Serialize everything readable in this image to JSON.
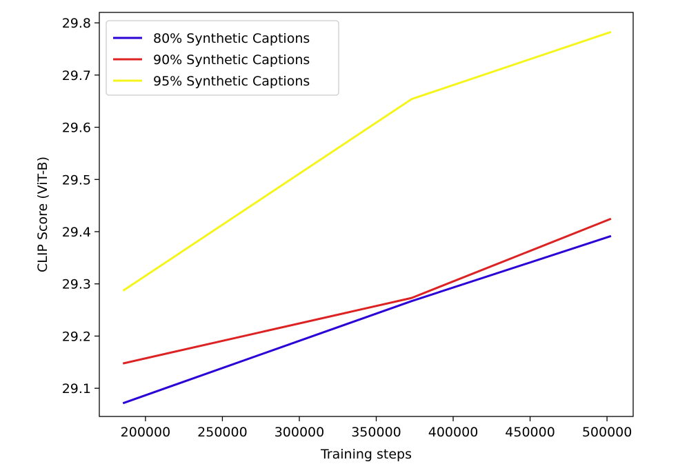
{
  "chart_data": {
    "type": "line",
    "title": "",
    "xlabel": "Training steps",
    "ylabel": "CLIP Score (ViT-B)",
    "xlim": [
      170000,
      517000
    ],
    "ylim": [
      29.046,
      29.82
    ],
    "xticks": [
      200000,
      250000,
      300000,
      350000,
      400000,
      450000,
      500000
    ],
    "xtick_labels": [
      "200000",
      "250000",
      "300000",
      "350000",
      "400000",
      "450000",
      "500000"
    ],
    "yticks": [
      29.1,
      29.2,
      29.3,
      29.4,
      29.5,
      29.6,
      29.7,
      29.8
    ],
    "ytick_labels": [
      "29.1",
      "29.2",
      "29.3",
      "29.4",
      "29.5",
      "29.6",
      "29.7",
      "29.8"
    ],
    "grid": false,
    "legend_position": "top-left",
    "x": [
      186000,
      373000,
      502000
    ],
    "series": [
      {
        "name": "80% Synthetic Captions",
        "color": "#2a00d6",
        "values": [
          29.072,
          29.267,
          29.391
        ]
      },
      {
        "name": "90% Synthetic Captions",
        "color": "#dc2222",
        "values": [
          29.148,
          29.273,
          29.424
        ]
      },
      {
        "name": "95% Synthetic Captions",
        "color": "#f5f51e",
        "values": [
          29.288,
          29.654,
          29.782
        ]
      }
    ]
  }
}
